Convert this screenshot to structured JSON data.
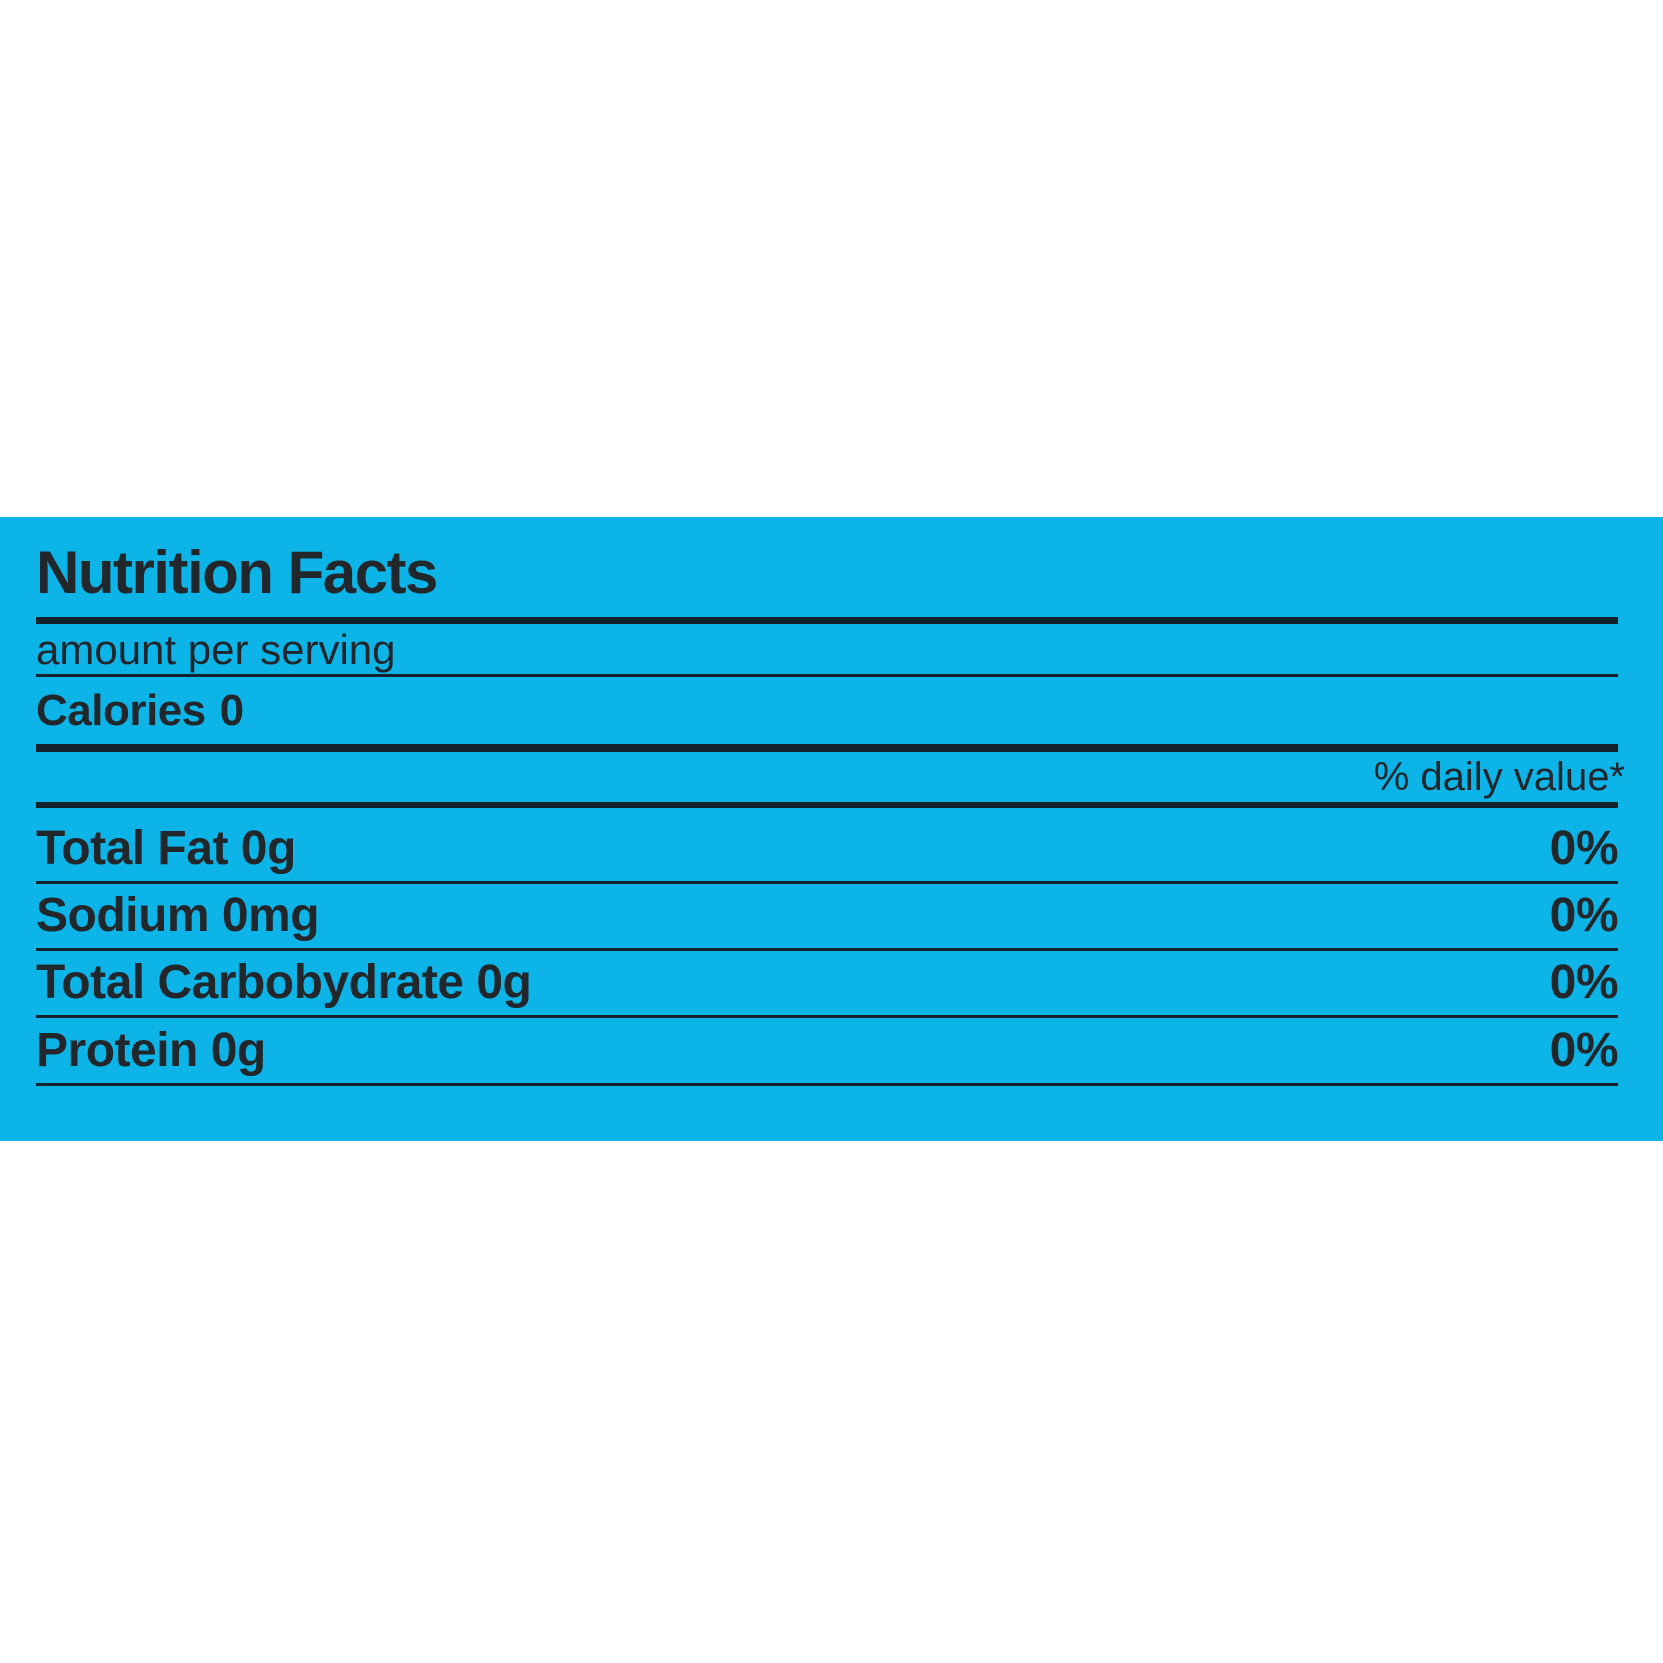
{
  "page": {
    "background_color": "#ffffff"
  },
  "label": {
    "band_color": "#0cb4e7",
    "ink_color": "#14222c",
    "text_color": "#22272c",
    "title": "Nutrition Facts",
    "amount_per_serving": "amount per serving",
    "calories": {
      "label": "Calories",
      "value": "0"
    },
    "daily_value_header": "% daily value*",
    "rows": [
      {
        "label": "Total Fat 0g",
        "value": "0%"
      },
      {
        "label": "Sodium 0mg",
        "value": "0%"
      },
      {
        "label": "Total Carbobydrate 0g",
        "value": "0%"
      },
      {
        "label": "Protein 0g",
        "value": "0%"
      }
    ]
  }
}
